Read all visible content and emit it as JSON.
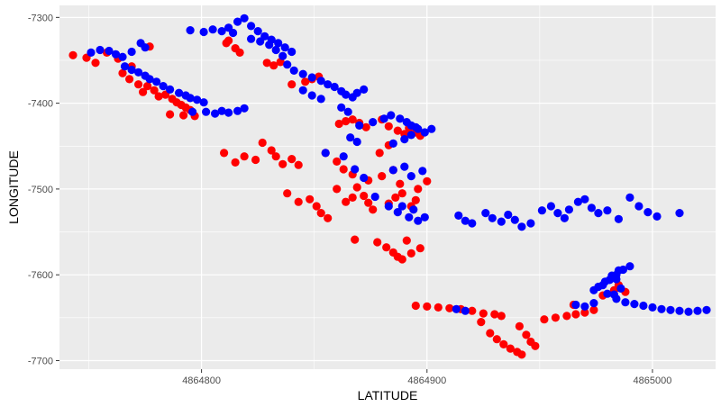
{
  "chart_data": {
    "type": "scatter",
    "title": "",
    "xlabel": "LATITUDE",
    "ylabel": "LONGITUDE",
    "xlim": [
      4864737,
      4865028
    ],
    "ylim": [
      -7710,
      -7286
    ],
    "x_ticks": [
      4864800,
      4864900,
      4865000
    ],
    "x_tick_labels": [
      "4864800",
      "4864900",
      "4865000"
    ],
    "y_ticks": [
      -7300,
      -7400,
      -7500,
      -7600,
      -7700
    ],
    "y_tick_labels": [
      "-7300",
      "-7400",
      "-7500",
      "-7600",
      "-7700"
    ],
    "grid": true,
    "legend": "none",
    "colors": {
      "panel": "#ebebeb",
      "grid_major": "#ffffff",
      "tick": "#333333",
      "red_series": "#ff0000",
      "blue_series": "#0000ff"
    },
    "series": [
      {
        "color": "#ff0000",
        "points": [
          [
            4864743,
            -7344
          ],
          [
            4864749,
            -7347
          ],
          [
            4864753,
            -7353
          ],
          [
            4864758,
            -7341
          ],
          [
            4864763,
            -7348
          ],
          [
            4864769,
            -7357
          ],
          [
            4864777,
            -7334
          ],
          [
            4864765,
            -7365
          ],
          [
            4864768,
            -7372
          ],
          [
            4864772,
            -7378
          ],
          [
            4864774,
            -7387
          ],
          [
            4864776,
            -7380
          ],
          [
            4864779,
            -7385
          ],
          [
            4864781,
            -7392
          ],
          [
            4864784,
            -7390
          ],
          [
            4864787,
            -7395
          ],
          [
            4864789,
            -7399
          ],
          [
            4864791,
            -7402
          ],
          [
            4864793,
            -7405
          ],
          [
            4864795,
            -7408
          ],
          [
            4864786,
            -7413
          ],
          [
            4864792,
            -7414
          ],
          [
            4864797,
            -7415
          ],
          [
            4864811,
            -7330
          ],
          [
            4864815,
            -7336
          ],
          [
            4864817,
            -7341
          ],
          [
            4864812,
            -7327
          ],
          [
            4864829,
            -7353
          ],
          [
            4864832,
            -7356
          ],
          [
            4864835,
            -7352
          ],
          [
            4864846,
            -7375
          ],
          [
            4864849,
            -7372
          ],
          [
            4864852,
            -7369
          ],
          [
            4864840,
            -7378
          ],
          [
            4864861,
            -7424
          ],
          [
            4864864,
            -7421
          ],
          [
            4864867,
            -7419
          ],
          [
            4864870,
            -7423
          ],
          [
            4864873,
            -7428
          ],
          [
            4864880,
            -7419
          ],
          [
            4864883,
            -7427
          ],
          [
            4864887,
            -7432
          ],
          [
            4864890,
            -7436
          ],
          [
            4864892,
            -7429
          ],
          [
            4864895,
            -7434
          ],
          [
            4864897,
            -7438
          ],
          [
            4864883,
            -7449
          ],
          [
            4864879,
            -7458
          ],
          [
            4864810,
            -7458
          ],
          [
            4864815,
            -7469
          ],
          [
            4864819,
            -7462
          ],
          [
            4864824,
            -7466
          ],
          [
            4864827,
            -7446
          ],
          [
            4864831,
            -7455
          ],
          [
            4864833,
            -7462
          ],
          [
            4864836,
            -7471
          ],
          [
            4864840,
            -7465
          ],
          [
            4864843,
            -7472
          ],
          [
            4864855,
            -7458
          ],
          [
            4864860,
            -7468
          ],
          [
            4864863,
            -7477
          ],
          [
            4864867,
            -7483
          ],
          [
            4864874,
            -7490
          ],
          [
            4864880,
            -7485
          ],
          [
            4864885,
            -7478
          ],
          [
            4864888,
            -7494
          ],
          [
            4864896,
            -7500
          ],
          [
            4864900,
            -7491
          ],
          [
            4864838,
            -7505
          ],
          [
            4864843,
            -7515
          ],
          [
            4864848,
            -7512
          ],
          [
            4864851,
            -7520
          ],
          [
            4864853,
            -7528
          ],
          [
            4864856,
            -7534
          ],
          [
            4864860,
            -7500
          ],
          [
            4864864,
            -7515
          ],
          [
            4864867,
            -7510
          ],
          [
            4864869,
            -7498
          ],
          [
            4864872,
            -7508
          ],
          [
            4864874,
            -7516
          ],
          [
            4864876,
            -7524
          ],
          [
            4864883,
            -7517
          ],
          [
            4864886,
            -7510
          ],
          [
            4864889,
            -7505
          ],
          [
            4864893,
            -7520
          ],
          [
            4864895,
            -7513
          ],
          [
            4864868,
            -7559
          ],
          [
            4864878,
            -7562
          ],
          [
            4864882,
            -7568
          ],
          [
            4864885,
            -7574
          ],
          [
            4864887,
            -7579
          ],
          [
            4864889,
            -7582
          ],
          [
            4864891,
            -7560
          ],
          [
            4864893,
            -7575
          ],
          [
            4864897,
            -7569
          ],
          [
            4864895,
            -7636
          ],
          [
            4864900,
            -7637
          ],
          [
            4864905,
            -7638
          ],
          [
            4864910,
            -7639
          ],
          [
            4864915,
            -7640
          ],
          [
            4864920,
            -7642
          ],
          [
            4864925,
            -7645
          ],
          [
            4864930,
            -7646
          ],
          [
            4864933,
            -7648
          ],
          [
            4864924,
            -7655
          ],
          [
            4864928,
            -7668
          ],
          [
            4864931,
            -7675
          ],
          [
            4864934,
            -7681
          ],
          [
            4864937,
            -7686
          ],
          [
            4864940,
            -7690
          ],
          [
            4864942,
            -7693
          ],
          [
            4864941,
            -7660
          ],
          [
            4864944,
            -7670
          ],
          [
            4864946,
            -7678
          ],
          [
            4864948,
            -7683
          ],
          [
            4864952,
            -7652
          ],
          [
            4864957,
            -7650
          ],
          [
            4864962,
            -7648
          ],
          [
            4864966,
            -7646
          ],
          [
            4864970,
            -7644
          ],
          [
            4864974,
            -7641
          ],
          [
            4864978,
            -7624
          ],
          [
            4864983,
            -7618
          ],
          [
            4864985,
            -7612
          ],
          [
            4864965,
            -7635
          ],
          [
            4864988,
            -7620
          ]
        ]
      },
      {
        "color": "#0000ff",
        "points": [
          [
            4864751,
            -7341
          ],
          [
            4864755,
            -7338
          ],
          [
            4864759,
            -7339
          ],
          [
            4864762,
            -7343
          ],
          [
            4864765,
            -7346
          ],
          [
            4864769,
            -7340
          ],
          [
            4864773,
            -7330
          ],
          [
            4864775,
            -7335
          ],
          [
            4864766,
            -7357
          ],
          [
            4864769,
            -7361
          ],
          [
            4864772,
            -7364
          ],
          [
            4864775,
            -7368
          ],
          [
            4864777,
            -7372
          ],
          [
            4864780,
            -7375
          ],
          [
            4864783,
            -7380
          ],
          [
            4864786,
            -7384
          ],
          [
            4864790,
            -7388
          ],
          [
            4864793,
            -7391
          ],
          [
            4864795,
            -7394
          ],
          [
            4864798,
            -7396
          ],
          [
            4864801,
            -7399
          ],
          [
            4864796,
            -7410
          ],
          [
            4864802,
            -7410
          ],
          [
            4864806,
            -7412
          ],
          [
            4864809,
            -7409
          ],
          [
            4864812,
            -7411
          ],
          [
            4864816,
            -7409
          ],
          [
            4864819,
            -7406
          ],
          [
            4864795,
            -7315
          ],
          [
            4864801,
            -7317
          ],
          [
            4864805,
            -7314
          ],
          [
            4864809,
            -7316
          ],
          [
            4864812,
            -7312
          ],
          [
            4864814,
            -7318
          ],
          [
            4864816,
            -7305
          ],
          [
            4864819,
            -7301
          ],
          [
            4864822,
            -7310
          ],
          [
            4864825,
            -7316
          ],
          [
            4864828,
            -7322
          ],
          [
            4864831,
            -7326
          ],
          [
            4864834,
            -7330
          ],
          [
            4864837,
            -7335
          ],
          [
            4864840,
            -7340
          ],
          [
            4864822,
            -7325
          ],
          [
            4864826,
            -7328
          ],
          [
            4864830,
            -7332
          ],
          [
            4864833,
            -7338
          ],
          [
            4864836,
            -7345
          ],
          [
            4864838,
            -7355
          ],
          [
            4864841,
            -7362
          ],
          [
            4864845,
            -7366
          ],
          [
            4864849,
            -7370
          ],
          [
            4864853,
            -7374
          ],
          [
            4864856,
            -7378
          ],
          [
            4864859,
            -7381
          ],
          [
            4864862,
            -7386
          ],
          [
            4864864,
            -7390
          ],
          [
            4864867,
            -7393
          ],
          [
            4864869,
            -7388
          ],
          [
            4864872,
            -7384
          ],
          [
            4864845,
            -7385
          ],
          [
            4864849,
            -7391
          ],
          [
            4864853,
            -7395
          ],
          [
            4864862,
            -7405
          ],
          [
            4864865,
            -7410
          ],
          [
            4864866,
            -7440
          ],
          [
            4864869,
            -7445
          ],
          [
            4864870,
            -7426
          ],
          [
            4864876,
            -7422
          ],
          [
            4864881,
            -7418
          ],
          [
            4864884,
            -7414
          ],
          [
            4864888,
            -7418
          ],
          [
            4864891,
            -7422
          ],
          [
            4864893,
            -7426
          ],
          [
            4864896,
            -7430
          ],
          [
            4864899,
            -7434
          ],
          [
            4864902,
            -7430
          ],
          [
            4864885,
            -7447
          ],
          [
            4864890,
            -7442
          ],
          [
            4864893,
            -7437
          ],
          [
            4864895,
            -7428
          ],
          [
            4864855,
            -7458
          ],
          [
            4864863,
            -7462
          ],
          [
            4864868,
            -7477
          ],
          [
            4864872,
            -7487
          ],
          [
            4864885,
            -7478
          ],
          [
            4864890,
            -7474
          ],
          [
            4864893,
            -7485
          ],
          [
            4864898,
            -7479
          ],
          [
            4864877,
            -7509
          ],
          [
            4864883,
            -7520
          ],
          [
            4864887,
            -7527
          ],
          [
            4864892,
            -7533
          ],
          [
            4864896,
            -7537
          ],
          [
            4864899,
            -7533
          ],
          [
            4864894,
            -7524
          ],
          [
            4864889,
            -7520
          ],
          [
            4864914,
            -7531
          ],
          [
            4864917,
            -7537
          ],
          [
            4864920,
            -7540
          ],
          [
            4864926,
            -7528
          ],
          [
            4864929,
            -7534
          ],
          [
            4864933,
            -7538
          ],
          [
            4864936,
            -7530
          ],
          [
            4864939,
            -7536
          ],
          [
            4864942,
            -7544
          ],
          [
            4864946,
            -7540
          ],
          [
            4864951,
            -7525
          ],
          [
            4864955,
            -7520
          ],
          [
            4864958,
            -7528
          ],
          [
            4864961,
            -7534
          ],
          [
            4864963,
            -7524
          ],
          [
            4864967,
            -7515
          ],
          [
            4864970,
            -7512
          ],
          [
            4864973,
            -7522
          ],
          [
            4864976,
            -7528
          ],
          [
            4864980,
            -7525
          ],
          [
            4864985,
            -7535
          ],
          [
            4864990,
            -7510
          ],
          [
            4864994,
            -7520
          ],
          [
            4864998,
            -7527
          ],
          [
            4865002,
            -7532
          ],
          [
            4865012,
            -7528
          ],
          [
            4864913,
            -7640
          ],
          [
            4864917,
            -7642
          ],
          [
            4864966,
            -7635
          ],
          [
            4864970,
            -7637
          ],
          [
            4864974,
            -7633
          ],
          [
            4864974,
            -7618
          ],
          [
            4864978,
            -7612
          ],
          [
            4864981,
            -7606
          ],
          [
            4864984,
            -7600
          ],
          [
            4864987,
            -7594
          ],
          [
            4864990,
            -7590
          ],
          [
            4864985,
            -7595
          ],
          [
            4864982,
            -7601
          ],
          [
            4864979,
            -7608
          ],
          [
            4864976,
            -7614
          ],
          [
            4864980,
            -7622
          ],
          [
            4864984,
            -7628
          ],
          [
            4864986,
            -7616
          ],
          [
            4864988,
            -7632
          ],
          [
            4864992,
            -7634
          ],
          [
            4864996,
            -7636
          ],
          [
            4865000,
            -7638
          ],
          [
            4865004,
            -7640
          ],
          [
            4865008,
            -7641
          ],
          [
            4865012,
            -7642
          ],
          [
            4865016,
            -7643
          ],
          [
            4865020,
            -7642
          ],
          [
            4865024,
            -7641
          ],
          [
            4864984,
            -7605
          ],
          [
            4864983,
            -7623
          ]
        ]
      }
    ]
  }
}
